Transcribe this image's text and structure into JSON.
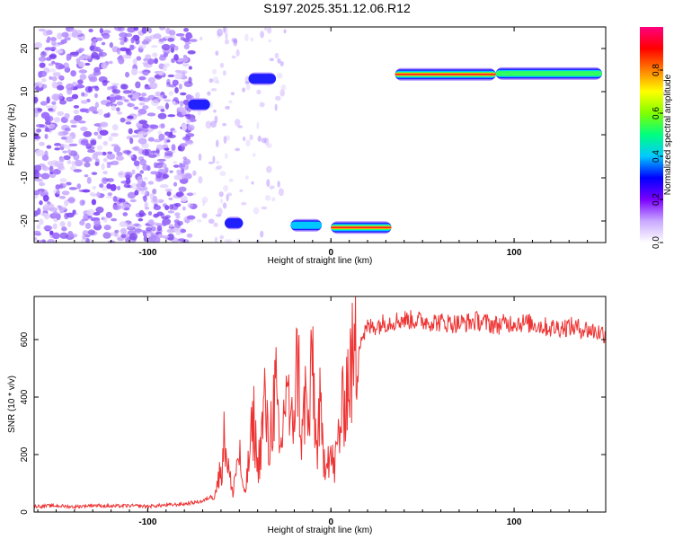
{
  "title": "S197.2025.351.12.06.R12",
  "chart_data": [
    {
      "type": "heatmap",
      "xlabel": "Height of straight line (km)",
      "ylabel": "Frequency (Hz)",
      "xlim": [
        -162,
        150
      ],
      "ylim": [
        -25,
        25
      ],
      "x_ticks": [
        -100,
        0,
        100
      ],
      "y_ticks": [
        -20,
        -10,
        0,
        10,
        20
      ],
      "colorbar": {
        "label": "Normalized spectral amplitude",
        "range": [
          0.0,
          1.0
        ],
        "ticks": [
          "0.0",
          "0.2",
          "0.4",
          "0.6",
          "0.8"
        ],
        "stops": [
          "#ffffff",
          "#c8a8ff",
          "#7a00ff",
          "#0000ff",
          "#00c8ff",
          "#00ff80",
          "#80ff00",
          "#ffff00",
          "#ff8000",
          "#ff0000",
          "#ff0080"
        ]
      },
      "ridges": [
        {
          "x": [
            35,
            90
          ],
          "y": 14,
          "amplitude": 1.0
        },
        {
          "x": [
            90,
            148
          ],
          "y": 14.2,
          "amplitude": 0.7
        },
        {
          "x": [
            0,
            33
          ],
          "y": -21.5,
          "amplitude": 1.0
        },
        {
          "x": [
            -22,
            -5
          ],
          "y": -21,
          "amplitude": 0.45
        },
        {
          "x": [
            -45,
            -30
          ],
          "y": 13,
          "amplitude": 0.35
        },
        {
          "x": [
            -78,
            -66
          ],
          "y": 7,
          "amplitude": 0.3
        },
        {
          "x": [
            -58,
            -48
          ],
          "y": -20.5,
          "amplitude": 0.35
        }
      ],
      "noise_region": {
        "x": [
          -162,
          -75
        ],
        "y": [
          -25,
          25
        ]
      }
    },
    {
      "type": "line",
      "xlabel": "Height of straight line (km)",
      "ylabel": "SNR (10 * v/v)",
      "xlim": [
        -162,
        150
      ],
      "ylim": [
        0,
        750
      ],
      "x_ticks": [
        -100,
        0,
        100
      ],
      "y_ticks": [
        0,
        200,
        400,
        600
      ],
      "color": "#ee3333",
      "x": [
        -162,
        -150,
        -140,
        -130,
        -120,
        -110,
        -100,
        -90,
        -80,
        -70,
        -65,
        -62,
        -60,
        -58,
        -56,
        -54,
        -52,
        -50,
        -48,
        -46,
        -44,
        -42,
        -40,
        -38,
        -36,
        -34,
        -32,
        -30,
        -28,
        -26,
        -24,
        -22,
        -20,
        -18,
        -16,
        -14,
        -12,
        -10,
        -8,
        -6,
        -4,
        -2,
        0,
        2,
        4,
        6,
        8,
        10,
        12,
        14,
        16,
        18,
        20,
        25,
        30,
        35,
        40,
        50,
        60,
        70,
        80,
        90,
        100,
        110,
        120,
        130,
        140,
        150
      ],
      "y": [
        20,
        22,
        18,
        24,
        20,
        22,
        20,
        24,
        28,
        38,
        55,
        95,
        150,
        270,
        160,
        60,
        140,
        210,
        60,
        100,
        230,
        320,
        150,
        250,
        400,
        200,
        350,
        420,
        180,
        300,
        500,
        250,
        380,
        550,
        230,
        400,
        280,
        560,
        200,
        350,
        180,
        220,
        190,
        150,
        260,
        330,
        430,
        470,
        520,
        560,
        600,
        620,
        640,
        650,
        660,
        665,
        670,
        665,
        660,
        655,
        665,
        650,
        660,
        655,
        640,
        645,
        635,
        620
      ]
    }
  ]
}
